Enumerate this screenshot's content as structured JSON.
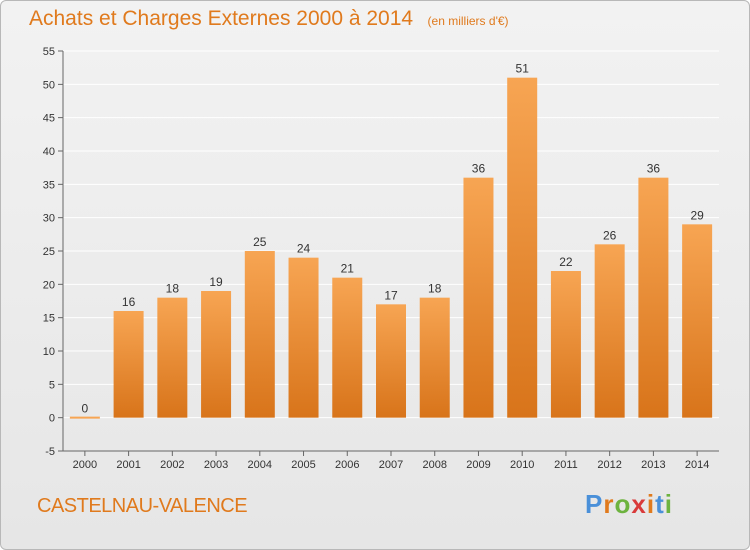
{
  "title": "Achats et Charges Externes 2000 à 2014",
  "unit_label": "(en milliers d'€)",
  "commune": "CASTELNAU-VALENCE",
  "logo": {
    "text": "Proxiti",
    "letter_colors": [
      "#4a90d9",
      "#e07a1d",
      "#6db33f",
      "#d93a3a",
      "#e07a1d",
      "#4a90d9",
      "#6db33f"
    ]
  },
  "colors": {
    "bar_top": "#f7a553",
    "bar_bottom": "#d8741a",
    "accent": "#e07a1d",
    "grid": "#ffffff",
    "axis_text": "#333333"
  },
  "chart_data": {
    "type": "bar",
    "categories": [
      "2000",
      "2001",
      "2002",
      "2003",
      "2004",
      "2005",
      "2006",
      "2007",
      "2008",
      "2009",
      "2010",
      "2011",
      "2012",
      "2013",
      "2014"
    ],
    "values": [
      0,
      16,
      18,
      19,
      25,
      24,
      21,
      17,
      18,
      36,
      51,
      22,
      26,
      36,
      29
    ],
    "ylim": [
      -5,
      55
    ],
    "yticks": [
      -5,
      0,
      5,
      10,
      15,
      20,
      25,
      30,
      35,
      40,
      45,
      50,
      55
    ],
    "grid": true,
    "xlabel": "",
    "ylabel": ""
  }
}
